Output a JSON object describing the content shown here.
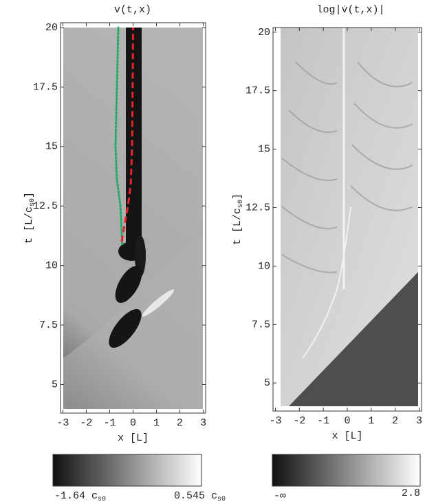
{
  "chart_data": [
    {
      "type": "density",
      "title": "v(t,x)",
      "xlabel": "x [L]",
      "ylabel": [
        "t [L/c",
        "s0",
        "]"
      ],
      "xlim": [
        -3.1,
        3.1
      ],
      "ylim": [
        3.8,
        20.2
      ],
      "xticks": [
        -3,
        -2,
        -1,
        0,
        1,
        2,
        3
      ],
      "yticks": [
        5,
        7.5,
        10,
        12.5,
        15,
        17.5,
        20
      ],
      "series": [
        {
          "color": "#22aa66",
          "style": "dotted",
          "x": [
            -0.46,
            -0.54,
            -0.69,
            -0.75,
            -0.63
          ],
          "values": [
            10.9,
            12.5,
            13.6,
            15,
            20
          ]
        },
        {
          "color": "#e8242a",
          "style": "dashed",
          "x": [
            -0.49,
            -0.22,
            -0.1,
            -0.04,
            0.0
          ],
          "values": [
            11,
            12.5,
            13.4,
            15,
            20
          ]
        }
      ],
      "colorbar": {
        "colors": [
          "#111111",
          "#ffffff"
        ],
        "ticks": [
          {
            "value": -1.64,
            "label": "-1.64 c",
            "subscript": "s0"
          },
          {
            "value": 0.545,
            "label": "0.545 c",
            "subscript": "s0"
          }
        ]
      }
    },
    {
      "type": "density",
      "title": "log|v̇(t,x)|",
      "xlabel": "x [L]",
      "ylabel": [
        "t [L/c",
        "s0",
        "]"
      ],
      "xlim": [
        -3.1,
        3.1
      ],
      "ylim": [
        3.8,
        20.2
      ],
      "xticks": [
        -3,
        -2,
        -1,
        0,
        1,
        2,
        3
      ],
      "yticks": [
        5,
        7.5,
        10,
        12.5,
        15,
        17.5,
        20
      ],
      "series": [],
      "colorbar": {
        "colors": [
          "#111111",
          "#ffffff"
        ],
        "ticks": [
          {
            "value": null,
            "label": "-∞"
          },
          2.8
        ]
      }
    }
  ]
}
